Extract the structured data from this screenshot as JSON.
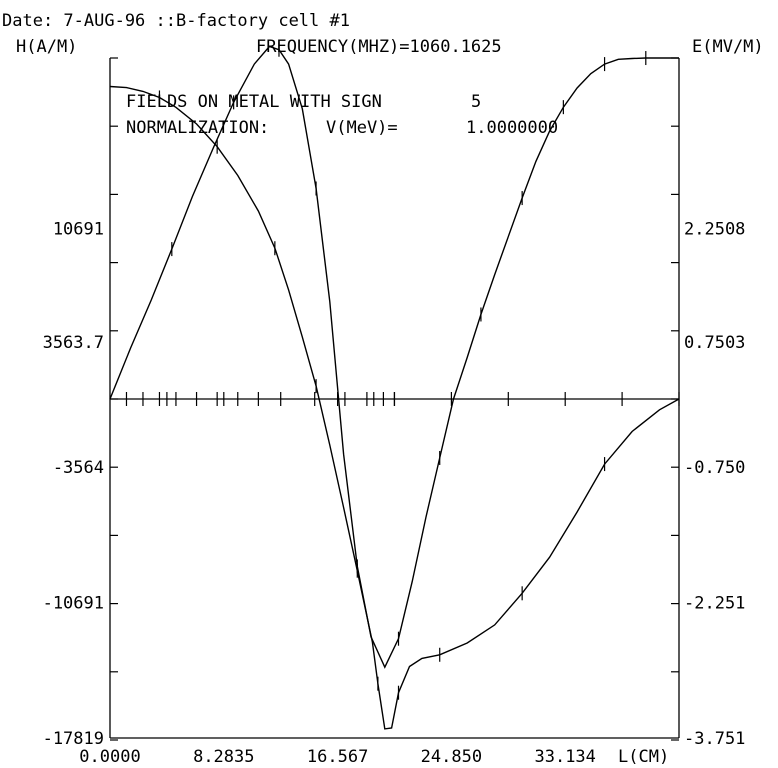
{
  "header": {
    "date_line": "Date: 7-AUG-96  ::B-factory cell #1",
    "left_axis_title": "H(A/M)",
    "frequency_line": "FREQUENCY(MHZ)=1060.1625",
    "right_axis_title": "E(MV/M)"
  },
  "annotation": {
    "line1_label": "FIELDS ON METAL WITH SIGN",
    "line1_value": "5",
    "line2_label": "NORMALIZATION:",
    "line2_var": "V(MeV)=",
    "line2_value": "1.0000000"
  },
  "chart_data": {
    "type": "line",
    "xlabel": "L(CM)",
    "xlim": [
      0,
      41.417
    ],
    "x_tick_labels": [
      "0.0000",
      "8.2835",
      "16.567",
      "24.850",
      "33.134"
    ],
    "y_left": {
      "label": "H(A/M)",
      "lim": [
        -17819,
        21382
      ],
      "tick_labels": [
        "10691",
        "3563.7",
        "-3564",
        "-10691",
        "-17819"
      ],
      "tick_values": [
        10691,
        3563.7,
        -3564,
        -10691,
        -17819
      ]
    },
    "y_right": {
      "label": "E(MV/M)",
      "lim": [
        -3.751,
        4.501
      ],
      "tick_labels": [
        "2.2508",
        "0.7503",
        "-0.750",
        "-2.251",
        "-3.751"
      ],
      "tick_values": [
        2.2508,
        0.7503,
        -0.75,
        -2.251,
        -3.751
      ]
    },
    "mesh_ticks_x": [
      1.2,
      2.4,
      3.6,
      4.8,
      6.3,
      7.8,
      9.3,
      10.8,
      14.9,
      17.1,
      18.7,
      19.2,
      19.9,
      20.7
    ],
    "series": [
      {
        "axis": "left",
        "x": [
          0,
          1.5,
          3.0,
          4.5,
          6.0,
          7.5,
          9.0,
          10.5,
          11.6,
          12.3,
          13.0,
          14.0,
          15.0,
          16.0,
          17.0,
          18.0,
          19.0,
          20.0,
          21.0,
          22.0,
          23.0,
          24.0,
          25.0,
          26.0,
          27.0,
          28.0,
          29.0,
          30.0,
          31.0,
          32.0,
          33.0,
          34.0,
          35.0,
          36.0,
          37.0,
          38.0,
          39.0,
          40.0,
          41.417
        ],
        "y": [
          0,
          3200,
          6200,
          9400,
          12700,
          15700,
          18600,
          21000,
          22100,
          21900,
          21000,
          18200,
          13200,
          6100,
          -2900,
          -8800,
          -12500,
          -14100,
          -12600,
          -9600,
          -6200,
          -3100,
          0,
          2600,
          5300,
          7800,
          10200,
          12600,
          14900,
          16800,
          18300,
          19500,
          20400,
          21000,
          21300,
          21350,
          21380,
          21382,
          21382
        ]
      },
      {
        "axis": "right",
        "x": [
          0,
          1.2,
          2.4,
          3.6,
          4.8,
          6.3,
          7.8,
          9.3,
          10.8,
          12.0,
          13.0,
          14.0,
          15.0,
          16.0,
          17.0,
          18.0,
          18.6,
          19.1,
          19.5,
          20.0,
          20.5,
          21.0,
          21.8,
          22.7,
          24.0,
          26.0,
          28.0,
          30.0,
          32.0,
          34.0,
          36.0,
          38.0,
          40.0,
          41.417
        ],
        "y": [
          4.125,
          4.11,
          4.06,
          3.98,
          3.85,
          3.63,
          3.33,
          2.95,
          2.48,
          1.99,
          1.44,
          0.82,
          0.17,
          -0.51,
          -1.2,
          -1.9,
          -2.33,
          -2.69,
          -3.15,
          -3.65,
          -3.64,
          -3.25,
          -2.96,
          -2.87,
          -2.83,
          -2.7,
          -2.5,
          -2.15,
          -1.75,
          -1.25,
          -0.72,
          -0.36,
          -0.12,
          0
        ]
      }
    ],
    "grid": false
  }
}
